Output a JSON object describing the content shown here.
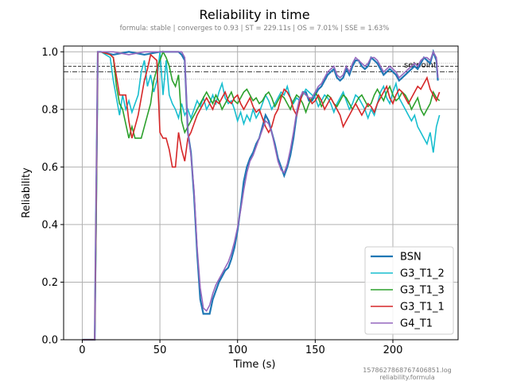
{
  "chart_data": {
    "type": "line",
    "title": "Reliability in time",
    "subtitle": "formula: stable | converges to 0.93 | ST = 229.11s | OS = 7.01% | SSE = 1.63%",
    "xlabel": "Time (s)",
    "ylabel": "Reliability",
    "xlim": [
      -12,
      242
    ],
    "ylim": [
      0,
      1.02
    ],
    "xticks": [
      0,
      50,
      100,
      150,
      200
    ],
    "yticks": [
      0.0,
      0.2,
      0.4,
      0.6,
      0.8,
      1.0
    ],
    "xtick_labels": [
      "0",
      "50",
      "100",
      "150",
      "200"
    ],
    "ytick_labels": [
      "0.0",
      "0.2",
      "0.4",
      "0.6",
      "0.8",
      "1.0"
    ],
    "grid": true,
    "legend_position": "lower-right",
    "reference_lines": {
      "setpoint": 0.93,
      "setpoint_label": "setpoint",
      "converge": 0.95,
      "band_upper": 0.96,
      "band_lower": 0.905
    },
    "series": [
      {
        "name": "BSN",
        "color": "#1f77b4",
        "x": [
          0,
          6,
          8,
          9,
          10,
          12,
          20,
          30,
          40,
          50,
          55,
          60,
          62,
          64,
          66,
          68,
          70,
          72,
          74,
          76,
          78,
          80,
          82,
          84,
          86,
          88,
          90,
          92,
          94,
          96,
          98,
          100,
          102,
          104,
          106,
          108,
          110,
          112,
          114,
          116,
          118,
          120,
          122,
          124,
          126,
          128,
          130,
          132,
          134,
          136,
          138,
          140,
          142,
          144,
          146,
          148,
          150,
          152,
          154,
          156,
          158,
          160,
          162,
          164,
          166,
          168,
          170,
          172,
          174,
          176,
          178,
          180,
          182,
          184,
          186,
          188,
          190,
          192,
          194,
          196,
          198,
          200,
          202,
          204,
          206,
          208,
          210,
          212,
          214,
          216,
          218,
          220,
          222,
          224,
          226,
          228,
          229
        ],
        "y": [
          0.0,
          0.0,
          0.0,
          0.5,
          1.0,
          1.0,
          0.99,
          1.0,
          0.99,
          1.0,
          1.0,
          1.0,
          1.0,
          0.99,
          0.97,
          0.72,
          0.65,
          0.5,
          0.3,
          0.14,
          0.09,
          0.09,
          0.09,
          0.14,
          0.17,
          0.2,
          0.22,
          0.24,
          0.25,
          0.28,
          0.32,
          0.38,
          0.46,
          0.55,
          0.6,
          0.63,
          0.65,
          0.68,
          0.7,
          0.74,
          0.78,
          0.76,
          0.72,
          0.68,
          0.63,
          0.6,
          0.57,
          0.6,
          0.64,
          0.7,
          0.78,
          0.83,
          0.86,
          0.86,
          0.83,
          0.83,
          0.85,
          0.87,
          0.88,
          0.9,
          0.92,
          0.93,
          0.94,
          0.91,
          0.9,
          0.91,
          0.94,
          0.92,
          0.95,
          0.97,
          0.97,
          0.95,
          0.94,
          0.95,
          0.98,
          0.97,
          0.96,
          0.94,
          0.92,
          0.93,
          0.94,
          0.93,
          0.92,
          0.9,
          0.91,
          0.92,
          0.93,
          0.94,
          0.95,
          0.94,
          0.96,
          0.98,
          0.97,
          0.96,
          1.0,
          0.97,
          0.9
        ]
      },
      {
        "name": "G3_T1_2",
        "color": "#17becf",
        "x": [
          0,
          7,
          8,
          9,
          10,
          12,
          18,
          20,
          22,
          24,
          26,
          28,
          30,
          32,
          34,
          36,
          38,
          40,
          42,
          44,
          46,
          48,
          50,
          52,
          54,
          56,
          58,
          60,
          62,
          64,
          66,
          68,
          70,
          72,
          74,
          76,
          78,
          80,
          82,
          84,
          86,
          88,
          90,
          92,
          94,
          96,
          98,
          100,
          102,
          104,
          106,
          108,
          110,
          112,
          114,
          116,
          118,
          120,
          122,
          124,
          126,
          128,
          130,
          132,
          134,
          136,
          138,
          140,
          142,
          144,
          146,
          148,
          150,
          152,
          154,
          156,
          158,
          160,
          162,
          164,
          166,
          168,
          170,
          172,
          174,
          176,
          178,
          180,
          182,
          184,
          186,
          188,
          190,
          192,
          194,
          196,
          198,
          200,
          202,
          204,
          206,
          208,
          210,
          212,
          214,
          216,
          218,
          220,
          222,
          224,
          226,
          228,
          230
        ],
        "y": [
          0.0,
          0.0,
          0.0,
          0.5,
          1.0,
          1.0,
          0.98,
          0.9,
          0.84,
          0.78,
          0.85,
          0.8,
          0.83,
          0.79,
          0.82,
          0.85,
          0.93,
          0.97,
          0.88,
          0.92,
          0.86,
          0.9,
          1.0,
          0.85,
          0.97,
          0.85,
          0.82,
          0.8,
          0.77,
          0.82,
          0.78,
          0.8,
          0.77,
          0.8,
          0.83,
          0.81,
          0.84,
          0.8,
          0.82,
          0.85,
          0.82,
          0.86,
          0.89,
          0.84,
          0.82,
          0.83,
          0.8,
          0.76,
          0.79,
          0.75,
          0.78,
          0.76,
          0.8,
          0.77,
          0.79,
          0.82,
          0.85,
          0.83,
          0.8,
          0.82,
          0.84,
          0.86,
          0.85,
          0.88,
          0.84,
          0.82,
          0.84,
          0.83,
          0.85,
          0.87,
          0.86,
          0.85,
          0.84,
          0.81,
          0.83,
          0.85,
          0.84,
          0.82,
          0.79,
          0.82,
          0.84,
          0.86,
          0.83,
          0.8,
          0.82,
          0.85,
          0.84,
          0.82,
          0.8,
          0.77,
          0.8,
          0.78,
          0.82,
          0.86,
          0.88,
          0.84,
          0.82,
          0.86,
          0.89,
          0.84,
          0.82,
          0.8,
          0.78,
          0.76,
          0.78,
          0.74,
          0.72,
          0.7,
          0.68,
          0.72,
          0.65,
          0.74,
          0.78
        ]
      },
      {
        "name": "G3_T1_3",
        "color": "#2ca02c",
        "x": [
          0,
          7,
          8,
          9,
          10,
          12,
          18,
          20,
          22,
          24,
          26,
          28,
          30,
          32,
          34,
          36,
          38,
          40,
          42,
          44,
          46,
          48,
          50,
          52,
          54,
          56,
          58,
          60,
          62,
          64,
          66,
          68,
          70,
          72,
          74,
          76,
          78,
          80,
          82,
          84,
          86,
          88,
          90,
          92,
          94,
          96,
          98,
          100,
          102,
          104,
          106,
          108,
          110,
          112,
          114,
          116,
          118,
          120,
          122,
          124,
          126,
          128,
          130,
          132,
          134,
          136,
          138,
          140,
          142,
          144,
          146,
          148,
          150,
          152,
          154,
          156,
          158,
          160,
          162,
          164,
          166,
          168,
          170,
          172,
          174,
          176,
          178,
          180,
          182,
          184,
          186,
          188,
          190,
          192,
          194,
          196,
          198,
          200,
          202,
          204,
          206,
          208,
          210,
          212,
          214,
          216,
          218,
          220,
          222,
          224,
          226,
          228,
          230
        ],
        "y": [
          0.0,
          0.0,
          0.0,
          0.4,
          1.0,
          1.0,
          0.99,
          0.98,
          0.88,
          0.82,
          0.8,
          0.75,
          0.7,
          0.74,
          0.7,
          0.7,
          0.7,
          0.74,
          0.78,
          0.82,
          0.9,
          0.94,
          0.97,
          1.0,
          0.98,
          0.95,
          0.9,
          0.88,
          0.92,
          0.76,
          0.72,
          0.74,
          0.76,
          0.78,
          0.8,
          0.82,
          0.84,
          0.86,
          0.84,
          0.82,
          0.85,
          0.83,
          0.8,
          0.82,
          0.84,
          0.86,
          0.83,
          0.82,
          0.84,
          0.86,
          0.87,
          0.85,
          0.83,
          0.84,
          0.82,
          0.83,
          0.85,
          0.86,
          0.84,
          0.81,
          0.83,
          0.85,
          0.84,
          0.82,
          0.8,
          0.83,
          0.85,
          0.84,
          0.82,
          0.79,
          0.82,
          0.84,
          0.86,
          0.84,
          0.81,
          0.83,
          0.85,
          0.84,
          0.82,
          0.81,
          0.83,
          0.85,
          0.84,
          0.82,
          0.8,
          0.82,
          0.84,
          0.85,
          0.83,
          0.81,
          0.82,
          0.85,
          0.87,
          0.85,
          0.83,
          0.86,
          0.88,
          0.85,
          0.83,
          0.84,
          0.86,
          0.85,
          0.83,
          0.8,
          0.82,
          0.84,
          0.8,
          0.78,
          0.8,
          0.82,
          0.86,
          0.84,
          0.83
        ]
      },
      {
        "name": "G3_T1_1",
        "color": "#d62728",
        "x": [
          0,
          7,
          8,
          9,
          10,
          12,
          18,
          20,
          24,
          28,
          30,
          32,
          36,
          40,
          42,
          44,
          46,
          48,
          50,
          52,
          54,
          56,
          58,
          60,
          62,
          64,
          66,
          68,
          70,
          72,
          74,
          76,
          78,
          80,
          82,
          84,
          86,
          88,
          90,
          92,
          94,
          96,
          98,
          100,
          102,
          104,
          106,
          108,
          110,
          112,
          114,
          116,
          118,
          120,
          122,
          124,
          126,
          128,
          130,
          132,
          134,
          136,
          138,
          140,
          142,
          144,
          146,
          148,
          150,
          152,
          154,
          156,
          158,
          160,
          162,
          164,
          166,
          168,
          170,
          172,
          174,
          176,
          178,
          180,
          182,
          184,
          186,
          188,
          190,
          192,
          194,
          196,
          198,
          200,
          202,
          204,
          206,
          208,
          210,
          212,
          214,
          216,
          218,
          220,
          222,
          224,
          226,
          228,
          230
        ],
        "y": [
          0.0,
          0.0,
          0.0,
          0.5,
          1.0,
          1.0,
          0.99,
          0.98,
          0.85,
          0.85,
          0.76,
          0.7,
          0.78,
          0.9,
          0.94,
          0.99,
          0.98,
          0.97,
          0.72,
          0.7,
          0.7,
          0.66,
          0.6,
          0.6,
          0.72,
          0.66,
          0.62,
          0.7,
          0.72,
          0.75,
          0.78,
          0.8,
          0.82,
          0.84,
          0.82,
          0.8,
          0.83,
          0.82,
          0.84,
          0.86,
          0.83,
          0.82,
          0.84,
          0.85,
          0.82,
          0.8,
          0.82,
          0.84,
          0.81,
          0.79,
          0.8,
          0.77,
          0.74,
          0.72,
          0.74,
          0.78,
          0.8,
          0.84,
          0.87,
          0.86,
          0.84,
          0.8,
          0.78,
          0.82,
          0.86,
          0.85,
          0.84,
          0.82,
          0.83,
          0.85,
          0.83,
          0.8,
          0.82,
          0.84,
          0.82,
          0.8,
          0.78,
          0.74,
          0.76,
          0.78,
          0.8,
          0.82,
          0.8,
          0.78,
          0.8,
          0.82,
          0.81,
          0.79,
          0.82,
          0.84,
          0.86,
          0.88,
          0.84,
          0.82,
          0.85,
          0.87,
          0.86,
          0.84,
          0.82,
          0.84,
          0.86,
          0.88,
          0.87,
          0.89,
          0.91,
          0.87,
          0.85,
          0.83,
          0.86
        ]
      },
      {
        "name": "G4_T1",
        "color": "#9467bd",
        "x": [
          0,
          6,
          8,
          9,
          10,
          12,
          20,
          30,
          40,
          50,
          55,
          60,
          62,
          64,
          66,
          68,
          70,
          72,
          74,
          76,
          78,
          80,
          82,
          84,
          86,
          88,
          90,
          92,
          94,
          96,
          98,
          100,
          102,
          104,
          106,
          108,
          110,
          112,
          114,
          116,
          118,
          120,
          122,
          124,
          126,
          128,
          130,
          132,
          134,
          136,
          138,
          140,
          142,
          144,
          146,
          148,
          150,
          152,
          154,
          156,
          158,
          160,
          162,
          164,
          166,
          168,
          170,
          172,
          174,
          176,
          178,
          180,
          182,
          184,
          186,
          188,
          190,
          192,
          194,
          196,
          198,
          200,
          202,
          204,
          206,
          208,
          210,
          212,
          214,
          216,
          218,
          220,
          222,
          224,
          226,
          228,
          229
        ],
        "y": [
          0.0,
          0.0,
          0.0,
          0.5,
          1.0,
          1.0,
          1.0,
          0.99,
          1.0,
          1.0,
          1.0,
          1.0,
          1.0,
          1.0,
          0.98,
          0.72,
          0.64,
          0.52,
          0.32,
          0.18,
          0.11,
          0.1,
          0.12,
          0.16,
          0.19,
          0.21,
          0.23,
          0.25,
          0.27,
          0.3,
          0.34,
          0.39,
          0.45,
          0.52,
          0.58,
          0.62,
          0.64,
          0.67,
          0.7,
          0.73,
          0.76,
          0.75,
          0.72,
          0.67,
          0.62,
          0.59,
          0.58,
          0.61,
          0.66,
          0.72,
          0.79,
          0.84,
          0.86,
          0.85,
          0.84,
          0.84,
          0.86,
          0.88,
          0.89,
          0.91,
          0.93,
          0.94,
          0.95,
          0.92,
          0.91,
          0.92,
          0.95,
          0.93,
          0.96,
          0.98,
          0.97,
          0.96,
          0.95,
          0.96,
          0.98,
          0.98,
          0.97,
          0.95,
          0.93,
          0.94,
          0.95,
          0.94,
          0.93,
          0.91,
          0.92,
          0.93,
          0.94,
          0.95,
          0.96,
          0.95,
          0.97,
          0.98,
          0.98,
          0.97,
          1.0,
          0.98,
          0.91
        ]
      }
    ]
  },
  "footer": {
    "log_name": "1578627868767406851.log",
    "formula_name": "reliability.formula"
  }
}
